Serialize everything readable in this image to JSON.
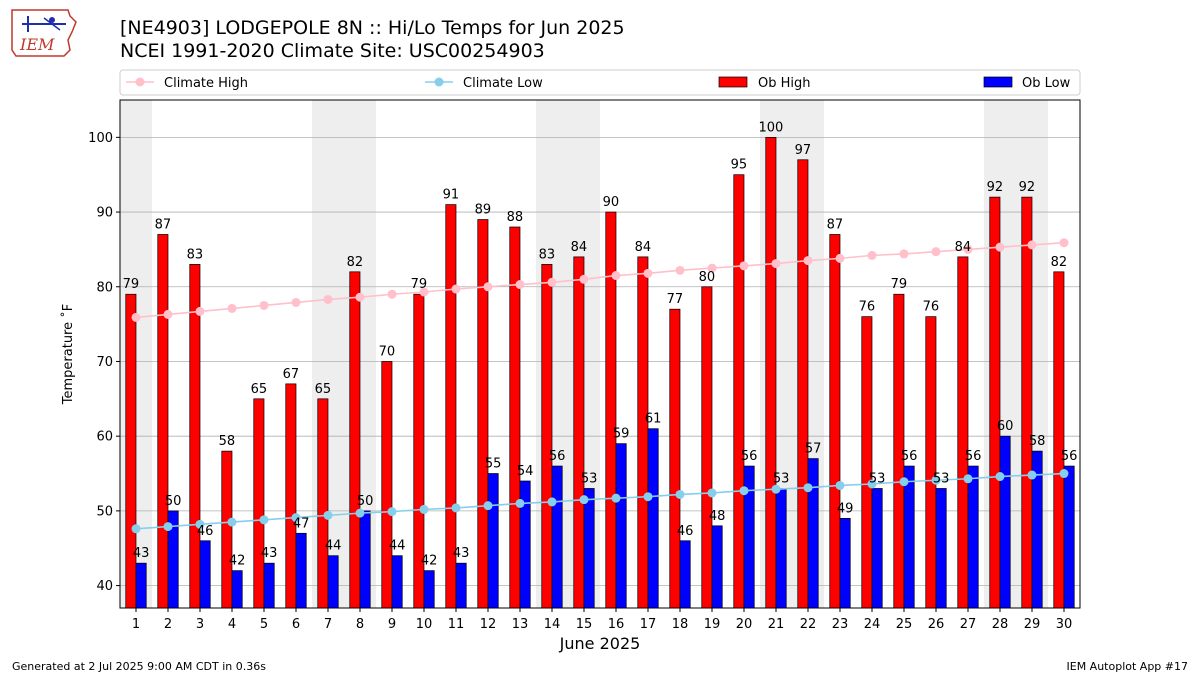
{
  "header": {
    "title_line1": "[NE4903] LODGEPOLE 8N :: Hi/Lo Temps for Jun 2025",
    "title_line2": "NCEI 1991-2020 Climate Site: USC00254903"
  },
  "logo": {
    "text": "IEM"
  },
  "footer": {
    "left": "Generated at 2 Jul 2025 9:00 AM CDT in 0.36s",
    "right": "IEM Autoplot App #17"
  },
  "colors": {
    "ob_high": "#ff0000",
    "ob_low": "#0000ff",
    "climate_high": "#ffc0cb",
    "climate_low": "#87ceeb",
    "weekend_band": "#eeeeee",
    "grid": "#b0b0b0"
  },
  "chart_data": {
    "type": "bar",
    "xlabel": "June 2025",
    "ylabel": "Temperature ˚F",
    "ylim": [
      37,
      105
    ],
    "yticks": [
      40,
      50,
      60,
      70,
      80,
      90,
      100
    ],
    "grid": "horizontal",
    "legend_placement": "top",
    "categories": [
      "1",
      "2",
      "3",
      "4",
      "5",
      "6",
      "7",
      "8",
      "9",
      "10",
      "11",
      "12",
      "13",
      "14",
      "15",
      "16",
      "17",
      "18",
      "19",
      "20",
      "21",
      "22",
      "23",
      "24",
      "25",
      "26",
      "27",
      "28",
      "29",
      "30"
    ],
    "shaded_days": [
      1,
      7,
      8,
      14,
      15,
      21,
      22,
      28,
      29
    ],
    "series": [
      {
        "name": "Ob High",
        "kind": "bar",
        "values": [
          79,
          87,
          83,
          58,
          65,
          67,
          65,
          82,
          70,
          79,
          91,
          89,
          88,
          83,
          84,
          90,
          84,
          77,
          80,
          95,
          100,
          97,
          87,
          76,
          79,
          76,
          84,
          92,
          92,
          82
        ]
      },
      {
        "name": "Ob Low",
        "kind": "bar",
        "values": [
          43,
          50,
          46,
          42,
          43,
          47,
          44,
          50,
          44,
          42,
          43,
          55,
          54,
          56,
          53,
          59,
          61,
          46,
          48,
          56,
          53,
          57,
          49,
          53,
          56,
          53,
          56,
          60,
          58,
          56
        ]
      },
      {
        "name": "Climate High",
        "kind": "line",
        "values": [
          75.9,
          76.3,
          76.7,
          77.1,
          77.5,
          77.9,
          78.3,
          78.6,
          79.0,
          79.3,
          79.7,
          80.0,
          80.3,
          80.6,
          81.0,
          81.5,
          81.8,
          82.2,
          82.5,
          82.8,
          83.1,
          83.5,
          83.8,
          84.2,
          84.4,
          84.7,
          85.0,
          85.3,
          85.6,
          85.9
        ]
      },
      {
        "name": "Climate Low",
        "kind": "line",
        "values": [
          47.6,
          47.9,
          48.2,
          48.5,
          48.8,
          49.1,
          49.4,
          49.7,
          49.9,
          50.2,
          50.4,
          50.7,
          51.0,
          51.2,
          51.5,
          51.7,
          51.9,
          52.2,
          52.4,
          52.7,
          52.9,
          53.1,
          53.4,
          53.6,
          53.9,
          54.1,
          54.3,
          54.6,
          54.8,
          55.0
        ]
      }
    ]
  }
}
